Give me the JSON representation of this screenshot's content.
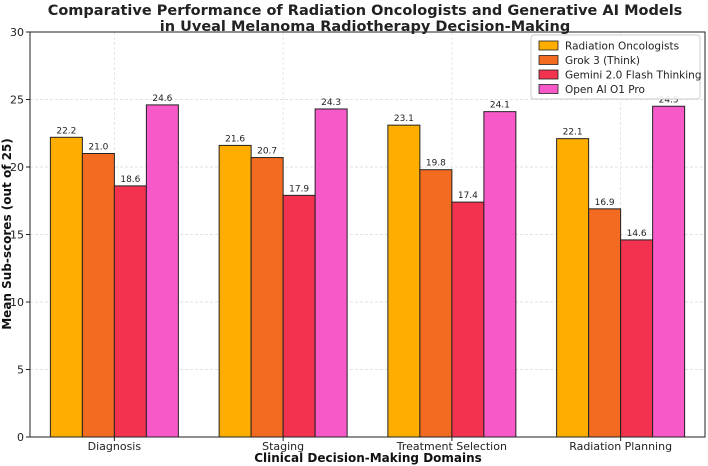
{
  "chart_data": {
    "type": "bar",
    "title": "Comparative Performance of Radiation Oncologists and Generative AI Models",
    "subtitle": "in Uveal Melanoma Radiotherapy Decision-Making",
    "xlabel": "Clinical Decision-Making Domains",
    "ylabel": "Mean Sub-scores (out of 25)",
    "ylim": [
      0,
      30
    ],
    "yticks": [
      0,
      5,
      10,
      15,
      20,
      25,
      30
    ],
    "grid": true,
    "legend_position": "top-right",
    "categories": [
      "Diagnosis",
      "Staging",
      "Treatment Selection",
      "Radiation Planning"
    ],
    "series": [
      {
        "name": "Radiation Oncologists",
        "color": "#FFAE00",
        "values": [
          22.2,
          21.6,
          23.1,
          22.1
        ],
        "labels": [
          "22.2",
          "21.6",
          "23.1",
          "22.1"
        ]
      },
      {
        "name": "Grok 3 (Think)",
        "color": "#F26B21",
        "values": [
          21.0,
          20.7,
          19.8,
          16.9
        ],
        "labels": [
          "21.0",
          "20.7",
          "19.8",
          "16.9"
        ]
      },
      {
        "name": "Gemini 2.0 Flash Thinking",
        "color": "#F2324E",
        "values": [
          18.6,
          17.9,
          17.4,
          14.6
        ],
        "labels": [
          "18.6",
          "17.9",
          "17.4",
          "14.6"
        ]
      },
      {
        "name": "Open AI O1 Pro",
        "color": "#F75AC8",
        "values": [
          24.6,
          24.3,
          24.1,
          24.5
        ],
        "labels": [
          "24.6",
          "24.3",
          "24.1",
          "24.5"
        ]
      }
    ]
  }
}
